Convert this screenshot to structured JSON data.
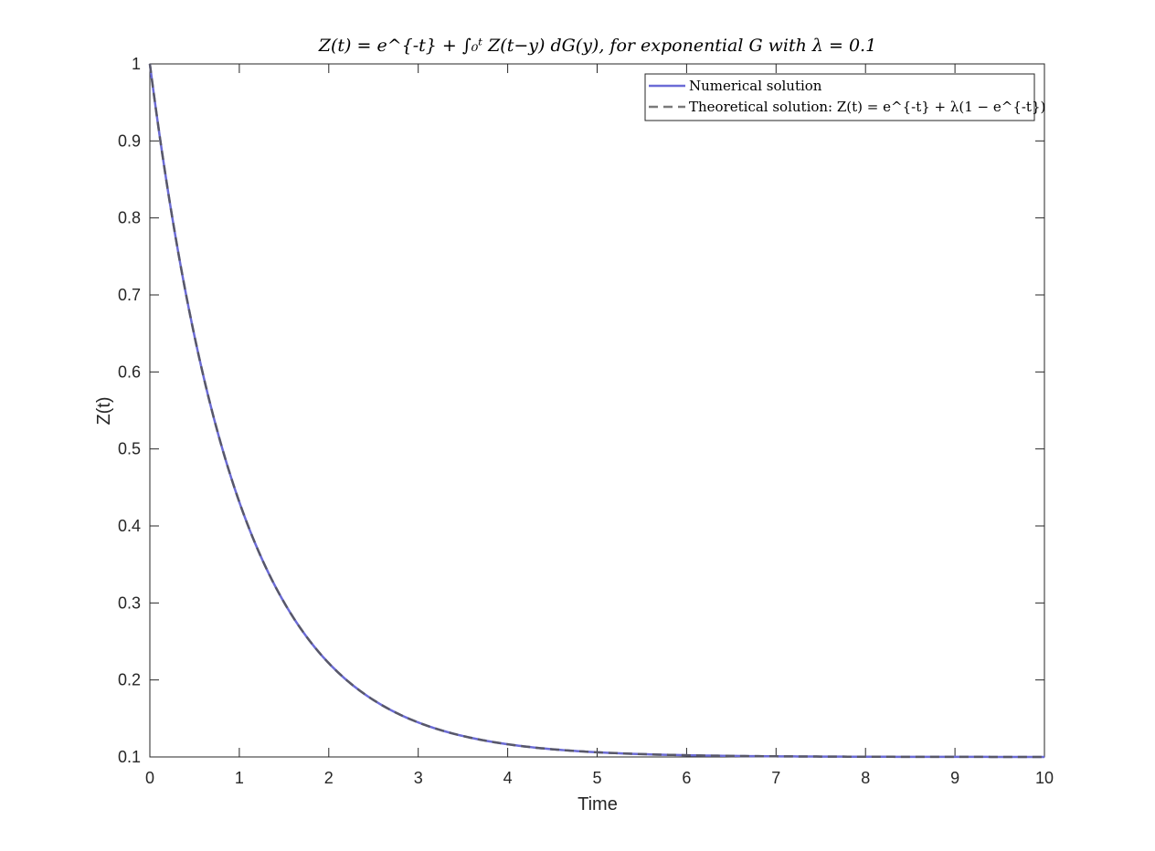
{
  "chart_data": {
    "type": "line",
    "title": "Z(t) = e^{-t} + ∫₀ᵗ Z(t−y) dG(y), for exponential G with λ = 0.1",
    "xlabel": "Time",
    "ylabel": "Z(t)",
    "xlim": [
      0,
      10
    ],
    "ylim": [
      0.1,
      1
    ],
    "x_ticks": [
      "0",
      "1",
      "2",
      "3",
      "4",
      "5",
      "6",
      "7",
      "8",
      "9",
      "10"
    ],
    "y_ticks": [
      "0.1",
      "0.2",
      "0.3",
      "0.4",
      "0.5",
      "0.6",
      "0.7",
      "0.8",
      "0.9",
      "1"
    ],
    "legend_position": "top-right",
    "lambda": 0.1,
    "series": [
      {
        "name": "Numerical solution",
        "style": "solid",
        "color": "#6b6bd6",
        "x": [
          0,
          0.25,
          0.5,
          0.75,
          1,
          1.25,
          1.5,
          1.75,
          2,
          2.5,
          3,
          3.5,
          4,
          4.5,
          5,
          6,
          7,
          8,
          9,
          10
        ],
        "y": [
          1.0,
          0.8009,
          0.6459,
          0.5251,
          0.4311,
          0.3578,
          0.3008,
          0.2564,
          0.2218,
          0.1722,
          0.1448,
          0.1272,
          0.1165,
          0.11,
          0.1061,
          0.1022,
          0.1008,
          0.1003,
          0.1001,
          0.1
        ]
      },
      {
        "name": "Theoretical solution: Z(t) = e^{-t} + λ(1 − e^{-t})",
        "style": "dashed",
        "color": "#555555",
        "x": [
          0,
          0.25,
          0.5,
          0.75,
          1,
          1.25,
          1.5,
          1.75,
          2,
          2.5,
          3,
          3.5,
          4,
          4.5,
          5,
          6,
          7,
          8,
          9,
          10
        ],
        "y": [
          1.0,
          0.8009,
          0.6459,
          0.5251,
          0.4311,
          0.3578,
          0.3008,
          0.2564,
          0.2218,
          0.1722,
          0.1448,
          0.1272,
          0.1165,
          0.11,
          0.1061,
          0.1022,
          0.1008,
          0.1003,
          0.1001,
          0.1
        ]
      }
    ]
  }
}
